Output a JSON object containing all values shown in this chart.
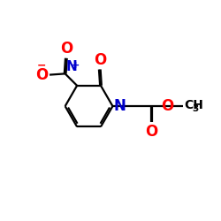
{
  "background_color": "#ffffff",
  "bond_color": "#000000",
  "nitrogen_color": "#0000cd",
  "oxygen_color": "#ff0000",
  "figsize": [
    2.5,
    2.5
  ],
  "dpi": 100,
  "xlim": [
    0,
    10
  ],
  "ylim": [
    0,
    10
  ]
}
